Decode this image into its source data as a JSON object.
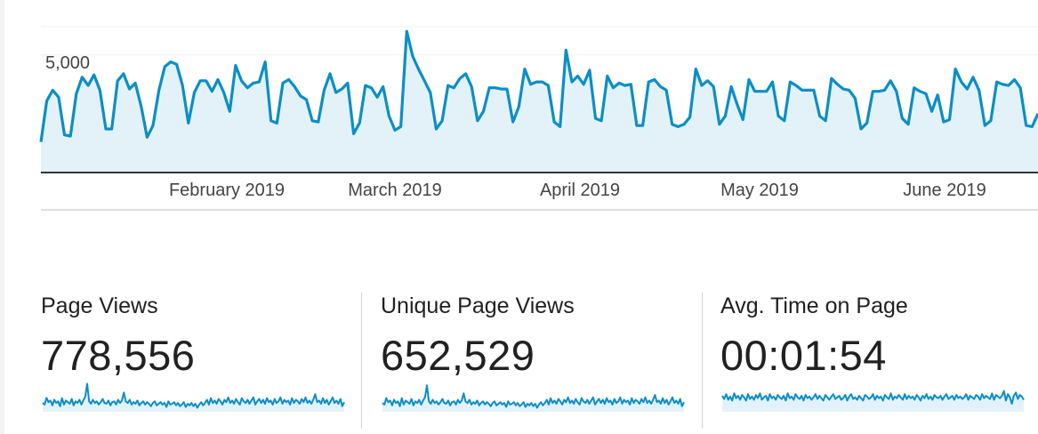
{
  "chart": {
    "y_tick_label": "5,000",
    "line_color": "#0b8ec7",
    "fill_color": "#e3f2f9",
    "x_labels": [
      "February 2019",
      "March 2019",
      "April 2019",
      "May 2019",
      "June 2019"
    ]
  },
  "chart_data": {
    "type": "area",
    "series": [
      {
        "values": [
          1300,
          3050,
          3500,
          3200,
          1600,
          1550,
          3350,
          4050,
          3700,
          4150,
          3500,
          1850,
          1850,
          3900,
          4200,
          3550,
          3800,
          2800,
          1500,
          2000,
          3500,
          4500,
          4700,
          4600,
          3700,
          2100,
          3400,
          3900,
          3900,
          3450,
          3950,
          3400,
          2600,
          4550,
          3900,
          3600,
          3800,
          3850,
          4700,
          2200,
          2100,
          3800,
          3950,
          3650,
          3250,
          3100,
          2200,
          2150,
          3500,
          4200,
          3400,
          3550,
          3800,
          1650,
          2100,
          3700,
          3600,
          3200,
          3650,
          2400,
          1800,
          1950,
          6000,
          4950,
          4400,
          3900,
          3400,
          1850,
          2200,
          3700,
          3600,
          4000,
          4200,
          3650,
          2200,
          2600,
          3600,
          3600,
          3550,
          3550,
          2150,
          2800,
          4400,
          3750,
          3850,
          3850,
          3700,
          2150,
          1950,
          5200,
          3850,
          4100,
          3750,
          4350,
          2300,
          2200,
          4100,
          3600,
          3800,
          3700,
          3750,
          2000,
          2000,
          3850,
          3950,
          3650,
          3500,
          2050,
          1950,
          2050,
          2350,
          4400,
          3700,
          3900,
          3650,
          2050,
          2400,
          3650,
          2900,
          2250,
          3950,
          3450,
          3450,
          3450,
          3850,
          2400,
          2200,
          3850,
          3700,
          3500,
          3500,
          3500,
          2400,
          2200,
          4000,
          3750,
          3550,
          3500,
          3150,
          1850,
          2100,
          3450,
          3450,
          3500,
          3900,
          3450,
          2300,
          2050,
          3600,
          3450,
          3350,
          2600,
          3300,
          2150,
          2250,
          4400,
          3850,
          3550,
          4050,
          3500,
          2000,
          2200,
          3850,
          3750,
          3700,
          3950,
          3600,
          2000,
          1950,
          2500
        ]
      }
    ],
    "x_labels": [
      "February 2019",
      "March 2019",
      "April 2019",
      "May 2019",
      "June 2019"
    ],
    "y_tick_labels": [
      "5,000"
    ],
    "ylim": [
      0,
      6500
    ],
    "grid": true
  },
  "metrics": [
    {
      "label": "Page Views",
      "value": "778,556",
      "spark": [
        22,
        18,
        35,
        24,
        28,
        16,
        30,
        22,
        26,
        14,
        34,
        18,
        28,
        24,
        20,
        32,
        16,
        26,
        22,
        30,
        18,
        28,
        38,
        70,
        26,
        20,
        30,
        22,
        26,
        18,
        24,
        32,
        22,
        20,
        28,
        16,
        24,
        26,
        18,
        30,
        22,
        28,
        48,
        26,
        22,
        30,
        18,
        24,
        20,
        28,
        16,
        22,
        26,
        18,
        24,
        20,
        14,
        22,
        26,
        16,
        20,
        24,
        18,
        22,
        12,
        26,
        18,
        20,
        24,
        16,
        22,
        14,
        18,
        24,
        12,
        20,
        16,
        22,
        14,
        20,
        10,
        18,
        24,
        16,
        22,
        30,
        18,
        34,
        22,
        28,
        20,
        32,
        26,
        18,
        30,
        24,
        36,
        22,
        28,
        20,
        32,
        24,
        18,
        34,
        26,
        22,
        30,
        20,
        28,
        36,
        18,
        26,
        32,
        22,
        30,
        20,
        34,
        24,
        28,
        18,
        32,
        22,
        26,
        36,
        20,
        30,
        24,
        28,
        18,
        34,
        22,
        30,
        26,
        20,
        32,
        24,
        36,
        22,
        28,
        20,
        30,
        44,
        24,
        28,
        20,
        34,
        22,
        30,
        18,
        26,
        36,
        22,
        28,
        20,
        32,
        14,
        24
      ]
    },
    {
      "label": "Unique Page Views",
      "value": "652,529",
      "spark": [
        22,
        18,
        34,
        24,
        28,
        16,
        30,
        22,
        26,
        14,
        34,
        18,
        28,
        24,
        20,
        32,
        16,
        26,
        22,
        30,
        18,
        28,
        36,
        66,
        26,
        20,
        30,
        22,
        26,
        18,
        24,
        32,
        22,
        20,
        28,
        16,
        24,
        26,
        18,
        30,
        22,
        28,
        46,
        26,
        22,
        30,
        18,
        24,
        20,
        28,
        16,
        22,
        26,
        18,
        24,
        20,
        14,
        22,
        26,
        16,
        20,
        24,
        18,
        22,
        12,
        26,
        18,
        20,
        24,
        16,
        22,
        14,
        18,
        24,
        12,
        20,
        16,
        22,
        14,
        20,
        10,
        18,
        24,
        16,
        22,
        30,
        18,
        34,
        22,
        28,
        20,
        32,
        26,
        18,
        30,
        24,
        36,
        22,
        28,
        20,
        32,
        24,
        18,
        34,
        26,
        22,
        30,
        20,
        28,
        36,
        18,
        26,
        32,
        22,
        30,
        20,
        34,
        24,
        28,
        18,
        32,
        22,
        26,
        36,
        20,
        30,
        24,
        28,
        18,
        34,
        22,
        30,
        26,
        20,
        32,
        24,
        36,
        22,
        28,
        20,
        30,
        42,
        24,
        28,
        20,
        34,
        22,
        30,
        18,
        26,
        36,
        22,
        28,
        20,
        32,
        14,
        24
      ]
    },
    {
      "label": "Avg. Time on Page",
      "value": "00:01:54",
      "spark": [
        40,
        32,
        44,
        30,
        38,
        28,
        46,
        34,
        40,
        30,
        42,
        36,
        28,
        44,
        32,
        38,
        30,
        42,
        34,
        46,
        30,
        36,
        40,
        28,
        44,
        34,
        38,
        30,
        42,
        36,
        32,
        40,
        28,
        46,
        34,
        38,
        30,
        44,
        36,
        32,
        40,
        28,
        42,
        34,
        38,
        30,
        36,
        44,
        32,
        40,
        34,
        28,
        42,
        36,
        30,
        38,
        44,
        32,
        36,
        40,
        30,
        34,
        42,
        28,
        38,
        44,
        32,
        36,
        30,
        40,
        34,
        28,
        42,
        38,
        32,
        36,
        44,
        30,
        40,
        34,
        38,
        28,
        42,
        36,
        32,
        46,
        30,
        38,
        34,
        42,
        36,
        30,
        44,
        32,
        40,
        34,
        38,
        30,
        42,
        36,
        28,
        40,
        34,
        44,
        32,
        38,
        30,
        42,
        36,
        34,
        40,
        30,
        38,
        44,
        32,
        36,
        40,
        30,
        42,
        34,
        38,
        32,
        36,
        44,
        30,
        40,
        36,
        32,
        42,
        38,
        30,
        44,
        34,
        40,
        36,
        32,
        46,
        30,
        42,
        38,
        34,
        40,
        52,
        28,
        44,
        36,
        20,
        40,
        48,
        32,
        42,
        38,
        30
      ]
    }
  ]
}
